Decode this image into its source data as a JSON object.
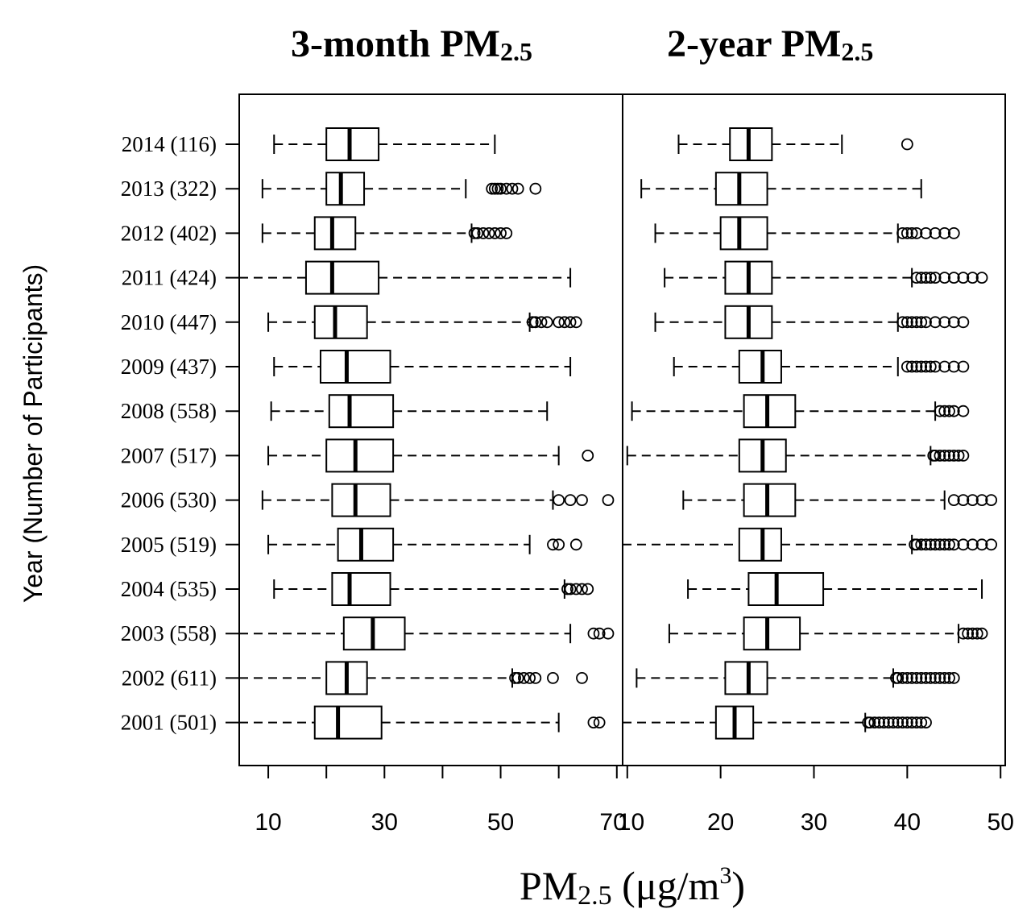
{
  "chart_data": {
    "type": "boxplot",
    "orientation": "horizontal",
    "xlabel": {
      "main": "PM",
      "sub": "2.5",
      "unit_pre": " (μg/m",
      "unit_sup": "3",
      "unit_post": ")"
    },
    "ylabel": "Year (Number of Participants)",
    "categories": [
      "2014 (116)",
      "2013 (322)",
      "2012 (402)",
      "2011 (424)",
      "2010 (447)",
      "2009 (437)",
      "2008 (558)",
      "2007 (517)",
      "2006 (530)",
      "2005 (519)",
      "2004 (535)",
      "2003 (558)",
      "2002 (611)",
      "2001 (501)"
    ],
    "panels": [
      {
        "title_main": "3-month PM",
        "title_sub": "2.5",
        "xlim": [
          5,
          71
        ],
        "xticks": [
          10,
          30,
          50,
          70
        ],
        "minor_xticks": [
          20,
          40,
          60
        ],
        "boxes": [
          {
            "whislo": 11,
            "q1": 20,
            "med": 24,
            "q3": 29,
            "whishi": 49,
            "fliers": []
          },
          {
            "whislo": 9,
            "q1": 20,
            "med": 22.5,
            "q3": 26.5,
            "whishi": 44,
            "fliers": [
              48.5,
              49,
              49.5,
              50,
              51,
              52,
              53,
              56
            ]
          },
          {
            "whislo": 9,
            "q1": 18,
            "med": 21,
            "q3": 25,
            "whishi": 45,
            "fliers": [
              45.5,
              46,
              47,
              48,
              49,
              50,
              51
            ]
          },
          {
            "whislo": 5,
            "q1": 16.5,
            "med": 21,
            "q3": 29,
            "whishi": 62,
            "fliers": []
          },
          {
            "whislo": 10,
            "q1": 18,
            "med": 21.5,
            "q3": 27,
            "whishi": 55,
            "fliers": [
              55.5,
              56,
              57,
              58,
              60,
              61,
              62,
              63
            ]
          },
          {
            "whislo": 11,
            "q1": 19,
            "med": 23.5,
            "q3": 31,
            "whishi": 62,
            "fliers": []
          },
          {
            "whislo": 10.5,
            "q1": 20.5,
            "med": 24,
            "q3": 31.5,
            "whishi": 58,
            "fliers": []
          },
          {
            "whislo": 10,
            "q1": 20,
            "med": 25,
            "q3": 31.5,
            "whishi": 60,
            "fliers": [
              65
            ]
          },
          {
            "whislo": 9,
            "q1": 21,
            "med": 25,
            "q3": 31,
            "whishi": 59,
            "fliers": [
              60,
              62,
              64,
              68.5
            ]
          },
          {
            "whislo": 10,
            "q1": 22,
            "med": 26,
            "q3": 31.5,
            "whishi": 55,
            "fliers": [
              59,
              60,
              63
            ]
          },
          {
            "whislo": 11,
            "q1": 21,
            "med": 24,
            "q3": 31,
            "whishi": 61,
            "fliers": [
              61.5,
              62,
              63,
              64,
              65
            ]
          },
          {
            "whislo": 5,
            "q1": 23,
            "med": 28,
            "q3": 33.5,
            "whishi": 62,
            "fliers": [
              66,
              67,
              68.5
            ]
          },
          {
            "whislo": 5,
            "q1": 20,
            "med": 23.5,
            "q3": 27,
            "whishi": 52,
            "fliers": [
              52.5,
              53,
              54,
              55,
              56,
              59,
              64
            ]
          },
          {
            "whislo": 5,
            "q1": 18,
            "med": 22,
            "q3": 29.5,
            "whishi": 60,
            "fliers": [
              66,
              67
            ]
          }
        ]
      },
      {
        "title_main": "2-year PM",
        "title_sub": "2.5",
        "xlim": [
          9.5,
          50.5
        ],
        "xticks": [
          10,
          20,
          30,
          40,
          50
        ],
        "minor_xticks": [],
        "boxes": [
          {
            "whislo": 15.5,
            "q1": 21,
            "med": 23,
            "q3": 25.5,
            "whishi": 33,
            "fliers": [
              40
            ]
          },
          {
            "whislo": 11.5,
            "q1": 19.5,
            "med": 22,
            "q3": 25,
            "whishi": 41.5,
            "fliers": []
          },
          {
            "whislo": 13,
            "q1": 20,
            "med": 22,
            "q3": 25,
            "whishi": 39,
            "fliers": [
              39.5,
              40,
              40.5,
              41,
              42,
              43,
              44,
              45
            ]
          },
          {
            "whislo": 14,
            "q1": 20.5,
            "med": 23,
            "q3": 25.5,
            "whishi": 40.5,
            "fliers": [
              41,
              41.5,
              42,
              42.5,
              43,
              44,
              45,
              46,
              47,
              48
            ]
          },
          {
            "whislo": 13,
            "q1": 20.5,
            "med": 23,
            "q3": 25.5,
            "whishi": 39,
            "fliers": [
              39.5,
              40,
              40.5,
              41,
              41.5,
              42,
              43,
              44,
              45,
              46
            ]
          },
          {
            "whislo": 15,
            "q1": 22,
            "med": 24.5,
            "q3": 26.5,
            "whishi": 39,
            "fliers": [
              40,
              40.5,
              41,
              41.5,
              42,
              42.5,
              43,
              44,
              45,
              46
            ]
          },
          {
            "whislo": 10.5,
            "q1": 22.5,
            "med": 25,
            "q3": 28,
            "whishi": 43,
            "fliers": [
              43.5,
              44,
              44.5,
              45,
              46
            ]
          },
          {
            "whislo": 10,
            "q1": 22,
            "med": 24.5,
            "q3": 27,
            "whishi": 42.5,
            "fliers": [
              42.8,
              43,
              43.5,
              44,
              44.5,
              45,
              45.5,
              46
            ]
          },
          {
            "whislo": 16,
            "q1": 22.5,
            "med": 25,
            "q3": 28,
            "whishi": 44,
            "fliers": [
              45,
              46,
              47,
              48,
              49
            ]
          },
          {
            "whislo": 9.5,
            "q1": 22,
            "med": 24.5,
            "q3": 26.5,
            "whishi": 40.5,
            "fliers": [
              40.8,
              41,
              41.5,
              42,
              42.5,
              43,
              43.5,
              44,
              44.5,
              45,
              46,
              47,
              48,
              49
            ]
          },
          {
            "whislo": 16.5,
            "q1": 23,
            "med": 26,
            "q3": 31,
            "whishi": 48,
            "fliers": []
          },
          {
            "whislo": 14.5,
            "q1": 22.5,
            "med": 25,
            "q3": 28.5,
            "whishi": 45.5,
            "fliers": [
              46,
              46.5,
              47,
              47.5,
              48
            ]
          },
          {
            "whislo": 11,
            "q1": 20.5,
            "med": 23,
            "q3": 25,
            "whishi": 38.5,
            "fliers": [
              38.8,
              39,
              39.5,
              40,
              40.5,
              41,
              41.5,
              42,
              42.5,
              43,
              43.5,
              44,
              44.5,
              45
            ]
          },
          {
            "whislo": 9.5,
            "q1": 19.5,
            "med": 21.5,
            "q3": 23.5,
            "whishi": 35.5,
            "fliers": [
              35.8,
              36,
              36.5,
              37,
              37.5,
              38,
              38.5,
              39,
              39.5,
              40,
              40.5,
              41,
              41.5,
              42
            ]
          }
        ]
      }
    ]
  }
}
